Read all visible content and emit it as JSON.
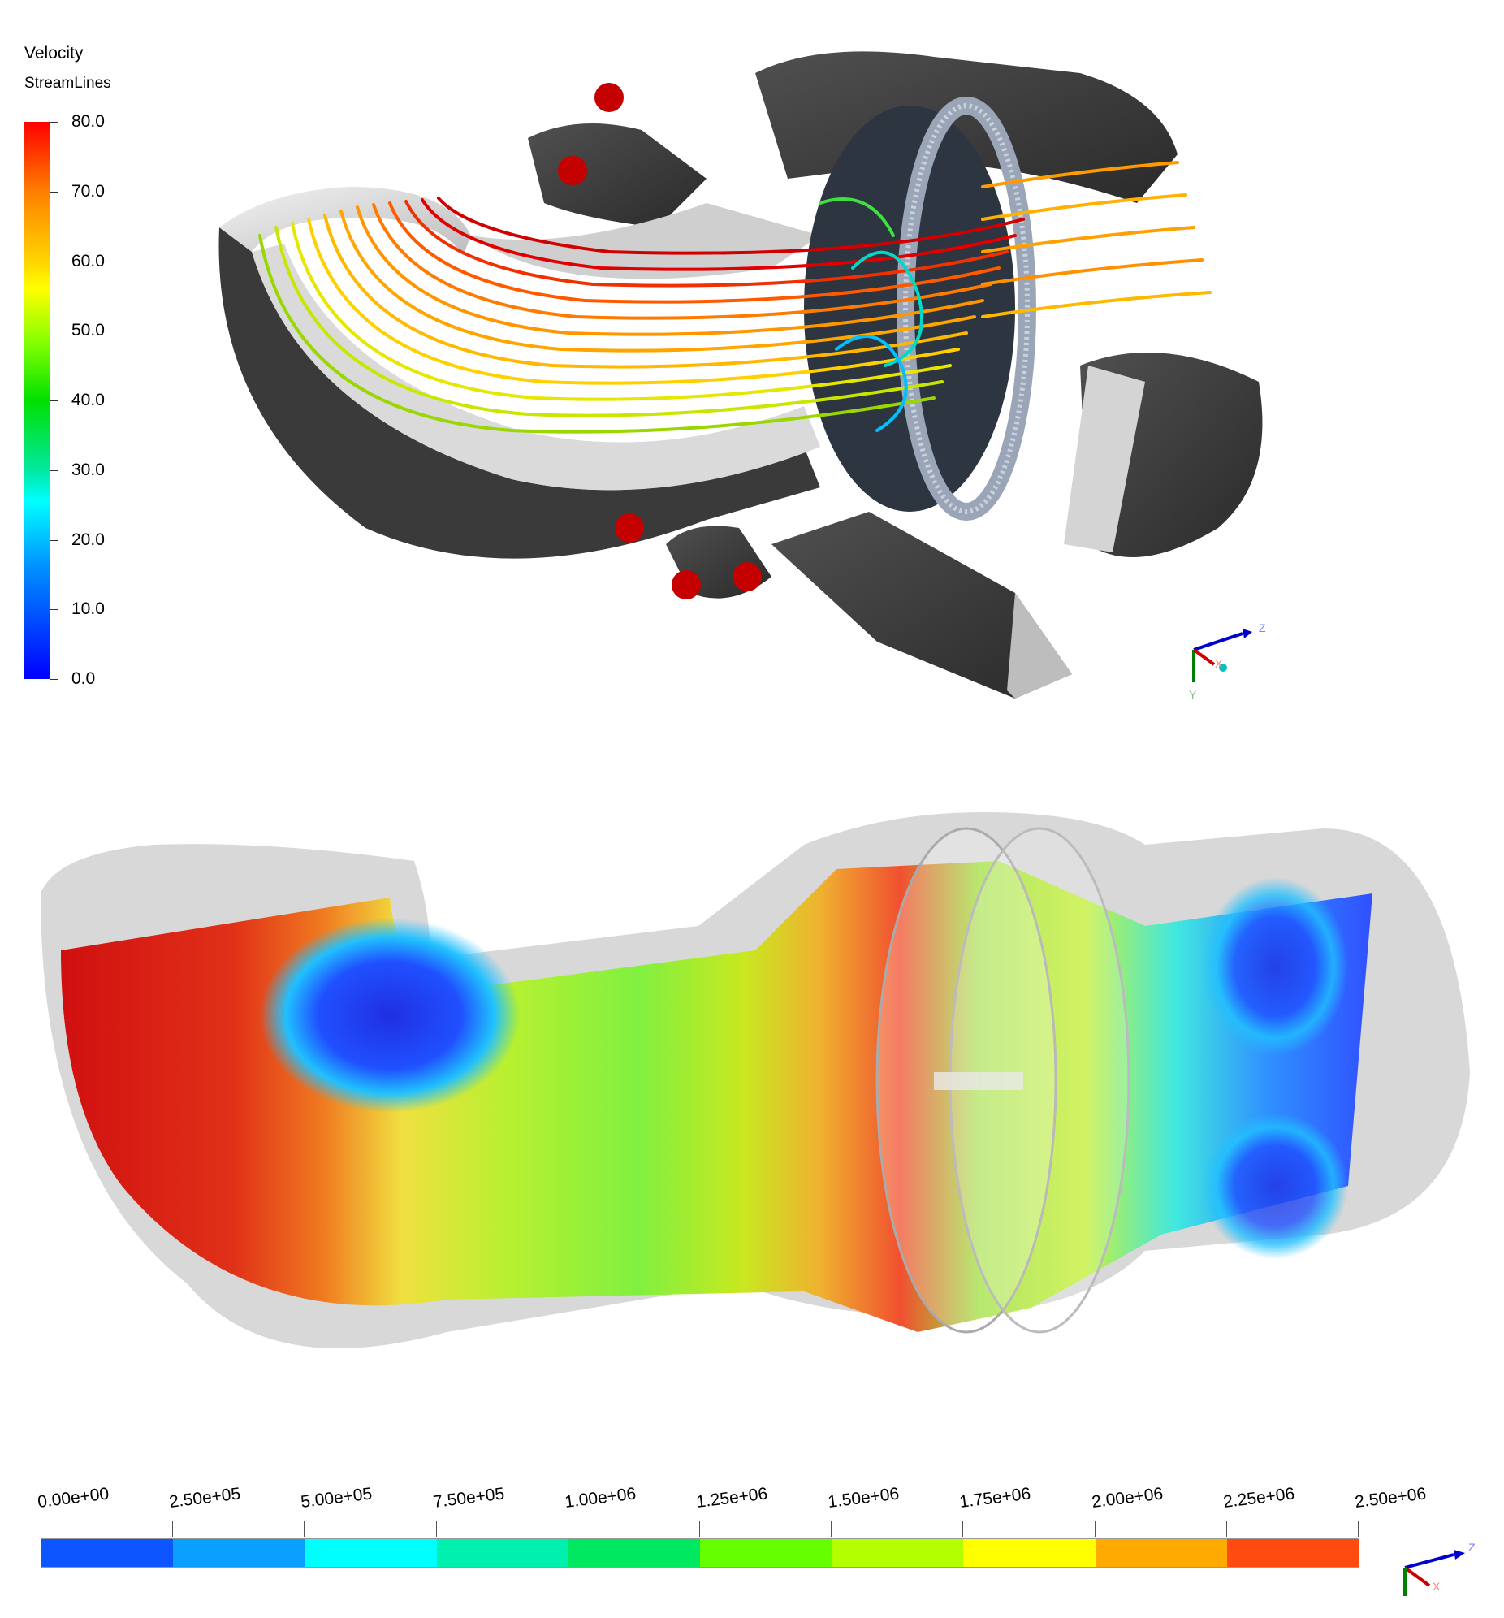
{
  "velocity_legend": {
    "title": "Velocity",
    "subtitle": "StreamLines",
    "ticks": [
      "80.0",
      "70.0",
      "60.0",
      "50.0",
      "40.0",
      "30.0",
      "20.0",
      "10.0",
      "0.0"
    ]
  },
  "pressure_legend": {
    "ticks": [
      "0.00e+00",
      "2.50e+05",
      "5.00e+05",
      "7.50e+05",
      "1.00e+06",
      "1.25e+06",
      "1.50e+06",
      "1.75e+06",
      "2.00e+06",
      "2.25e+06",
      "2.50e+06"
    ],
    "colors": [
      "#0d55ff",
      "#0aa0ff",
      "#00ffff",
      "#00f0b0",
      "#00e860",
      "#66ff00",
      "#b3ff00",
      "#ffff00",
      "#ffaa00",
      "#ff4a10"
    ]
  },
  "triad_top": {
    "z": "Z",
    "x": "X",
    "y": "Y"
  },
  "triad_bottom": {
    "z": "Z",
    "x": "X"
  }
}
